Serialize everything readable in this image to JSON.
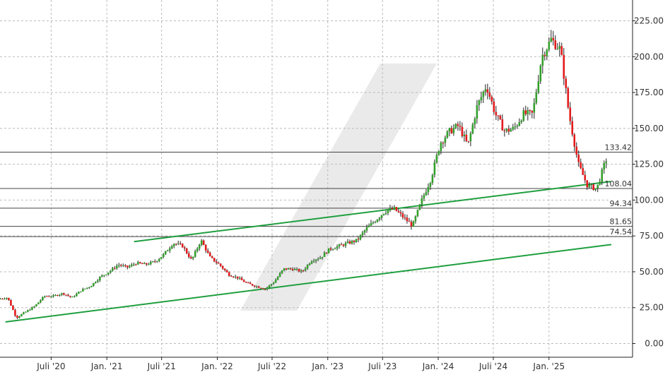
{
  "chart_data": {
    "type": "candlestick",
    "y_axis": {
      "side": "right",
      "ylim": [
        -10,
        235
      ],
      "ticks": [
        "0.00",
        "25.00",
        "50.00",
        "75.00",
        "100.00",
        "125.00",
        "150.00",
        "175.00",
        "200.00",
        "225.00"
      ],
      "tick_values": [
        0,
        25,
        50,
        75,
        100,
        125,
        150,
        175,
        200,
        225
      ]
    },
    "x_axis": {
      "xlim": [
        "2020-01-14",
        "2025-07-26"
      ],
      "ticks": [
        {
          "label": "Juli '20",
          "date": "2020-07-01"
        },
        {
          "label": "Jan. '21",
          "date": "2021-01-01"
        },
        {
          "label": "Juli '21",
          "date": "2021-07-01"
        },
        {
          "label": "Jan. '22",
          "date": "2022-01-01"
        },
        {
          "label": "Juli '22",
          "date": "2022-07-01"
        },
        {
          "label": "Jan. '23",
          "date": "2023-01-01"
        },
        {
          "label": "Juli '23",
          "date": "2023-07-01"
        },
        {
          "label": "Jan. '24",
          "date": "2024-01-01"
        },
        {
          "label": "Juli '24",
          "date": "2024-07-01"
        },
        {
          "label": "Jan. '25",
          "date": "2025-01-01"
        }
      ]
    },
    "grid": true,
    "price_path": [
      [
        "2020-01-15",
        31
      ],
      [
        "2020-02-15",
        32
      ],
      [
        "2020-03-15",
        18
      ],
      [
        "2020-04-15",
        22
      ],
      [
        "2020-05-15",
        26
      ],
      [
        "2020-06-15",
        33
      ],
      [
        "2020-07-15",
        33
      ],
      [
        "2020-08-15",
        35
      ],
      [
        "2020-09-15",
        32
      ],
      [
        "2020-10-15",
        37
      ],
      [
        "2020-11-15",
        40
      ],
      [
        "2020-12-15",
        46
      ],
      [
        "2021-01-15",
        50
      ],
      [
        "2021-02-15",
        55
      ],
      [
        "2021-03-15",
        53
      ],
      [
        "2021-04-15",
        56
      ],
      [
        "2021-05-15",
        55
      ],
      [
        "2021-06-15",
        57
      ],
      [
        "2021-07-15",
        62
      ],
      [
        "2021-08-15",
        70
      ],
      [
        "2021-09-15",
        68
      ],
      [
        "2021-10-15",
        58
      ],
      [
        "2021-11-15",
        72
      ],
      [
        "2021-12-15",
        60
      ],
      [
        "2022-01-15",
        55
      ],
      [
        "2022-02-15",
        48
      ],
      [
        "2022-03-15",
        46
      ],
      [
        "2022-04-15",
        42
      ],
      [
        "2022-05-15",
        40
      ],
      [
        "2022-06-15",
        38
      ],
      [
        "2022-07-15",
        43
      ],
      [
        "2022-08-15",
        52
      ],
      [
        "2022-09-15",
        52
      ],
      [
        "2022-10-15",
        50
      ],
      [
        "2022-11-15",
        58
      ],
      [
        "2022-12-15",
        60
      ],
      [
        "2023-01-15",
        66
      ],
      [
        "2023-02-15",
        68
      ],
      [
        "2023-03-15",
        70
      ],
      [
        "2023-04-15",
        72
      ],
      [
        "2023-05-15",
        80
      ],
      [
        "2023-06-15",
        86
      ],
      [
        "2023-07-15",
        92
      ],
      [
        "2023-08-15",
        94
      ],
      [
        "2023-09-15",
        88
      ],
      [
        "2023-10-15",
        82
      ],
      [
        "2023-11-15",
        100
      ],
      [
        "2023-12-15",
        115
      ],
      [
        "2024-01-15",
        140
      ],
      [
        "2024-02-15",
        148
      ],
      [
        "2024-03-15",
        152
      ],
      [
        "2024-04-15",
        138
      ],
      [
        "2024-05-15",
        165
      ],
      [
        "2024-06-15",
        180
      ],
      [
        "2024-07-15",
        160
      ],
      [
        "2024-08-15",
        148
      ],
      [
        "2024-09-15",
        150
      ],
      [
        "2024-10-15",
        160
      ],
      [
        "2024-11-15",
        160
      ],
      [
        "2024-12-15",
        200
      ],
      [
        "2025-01-15",
        212
      ],
      [
        "2025-02-15",
        205
      ],
      [
        "2025-03-15",
        160
      ],
      [
        "2025-04-15",
        125
      ],
      [
        "2025-05-15",
        110
      ],
      [
        "2025-06-15",
        108
      ],
      [
        "2025-07-15",
        128
      ]
    ],
    "horizontal_levels": [
      {
        "value": 133.42,
        "label": "133.42"
      },
      {
        "value": 108.04,
        "label": "108.04"
      },
      {
        "value": 94.34,
        "label": "94.34"
      },
      {
        "value": 81.65,
        "label": "81.65"
      },
      {
        "value": 74.54,
        "label": "74.54"
      }
    ],
    "trendlines": [
      {
        "start": [
          "2020-02-01",
          15
        ],
        "end": [
          "2025-07-26",
          69
        ]
      },
      {
        "start": [
          "2021-04-01",
          71
        ],
        "end": [
          "2025-07-26",
          113
        ]
      }
    ],
    "colors": {
      "up": "#33a02c",
      "down": "#e31a1c",
      "trendline": "#1f9f3f",
      "level": "#444444",
      "grid": "#bbbbbb",
      "watermark": "#e6e6e6"
    }
  }
}
